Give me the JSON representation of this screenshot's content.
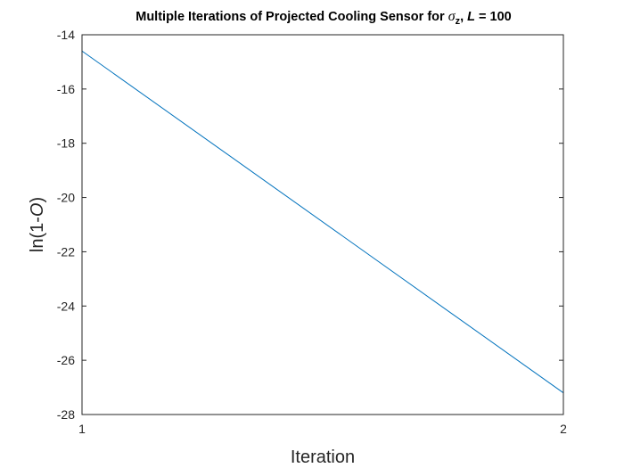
{
  "chart_data": {
    "type": "line",
    "title": {
      "prefix": "Multiple Iterations of Projected Cooling Sensor for ",
      "sigma": "σ",
      "sub": "z",
      "mid": ", ",
      "L": "L",
      "suffix": " = 100"
    },
    "xlabel": "Iteration",
    "ylabel": {
      "pre": "ln(1-",
      "var": "O",
      "post": ")"
    },
    "xlim": [
      1,
      2
    ],
    "ylim": [
      -28,
      -14
    ],
    "xticks": [
      1,
      2
    ],
    "yticks": [
      -28,
      -26,
      -24,
      -22,
      -20,
      -18,
      -16,
      -14
    ],
    "grid": false,
    "series": [
      {
        "x": [
          1,
          2
        ],
        "y": [
          -14.6,
          -27.2
        ],
        "color": "#0072BD"
      }
    ]
  }
}
